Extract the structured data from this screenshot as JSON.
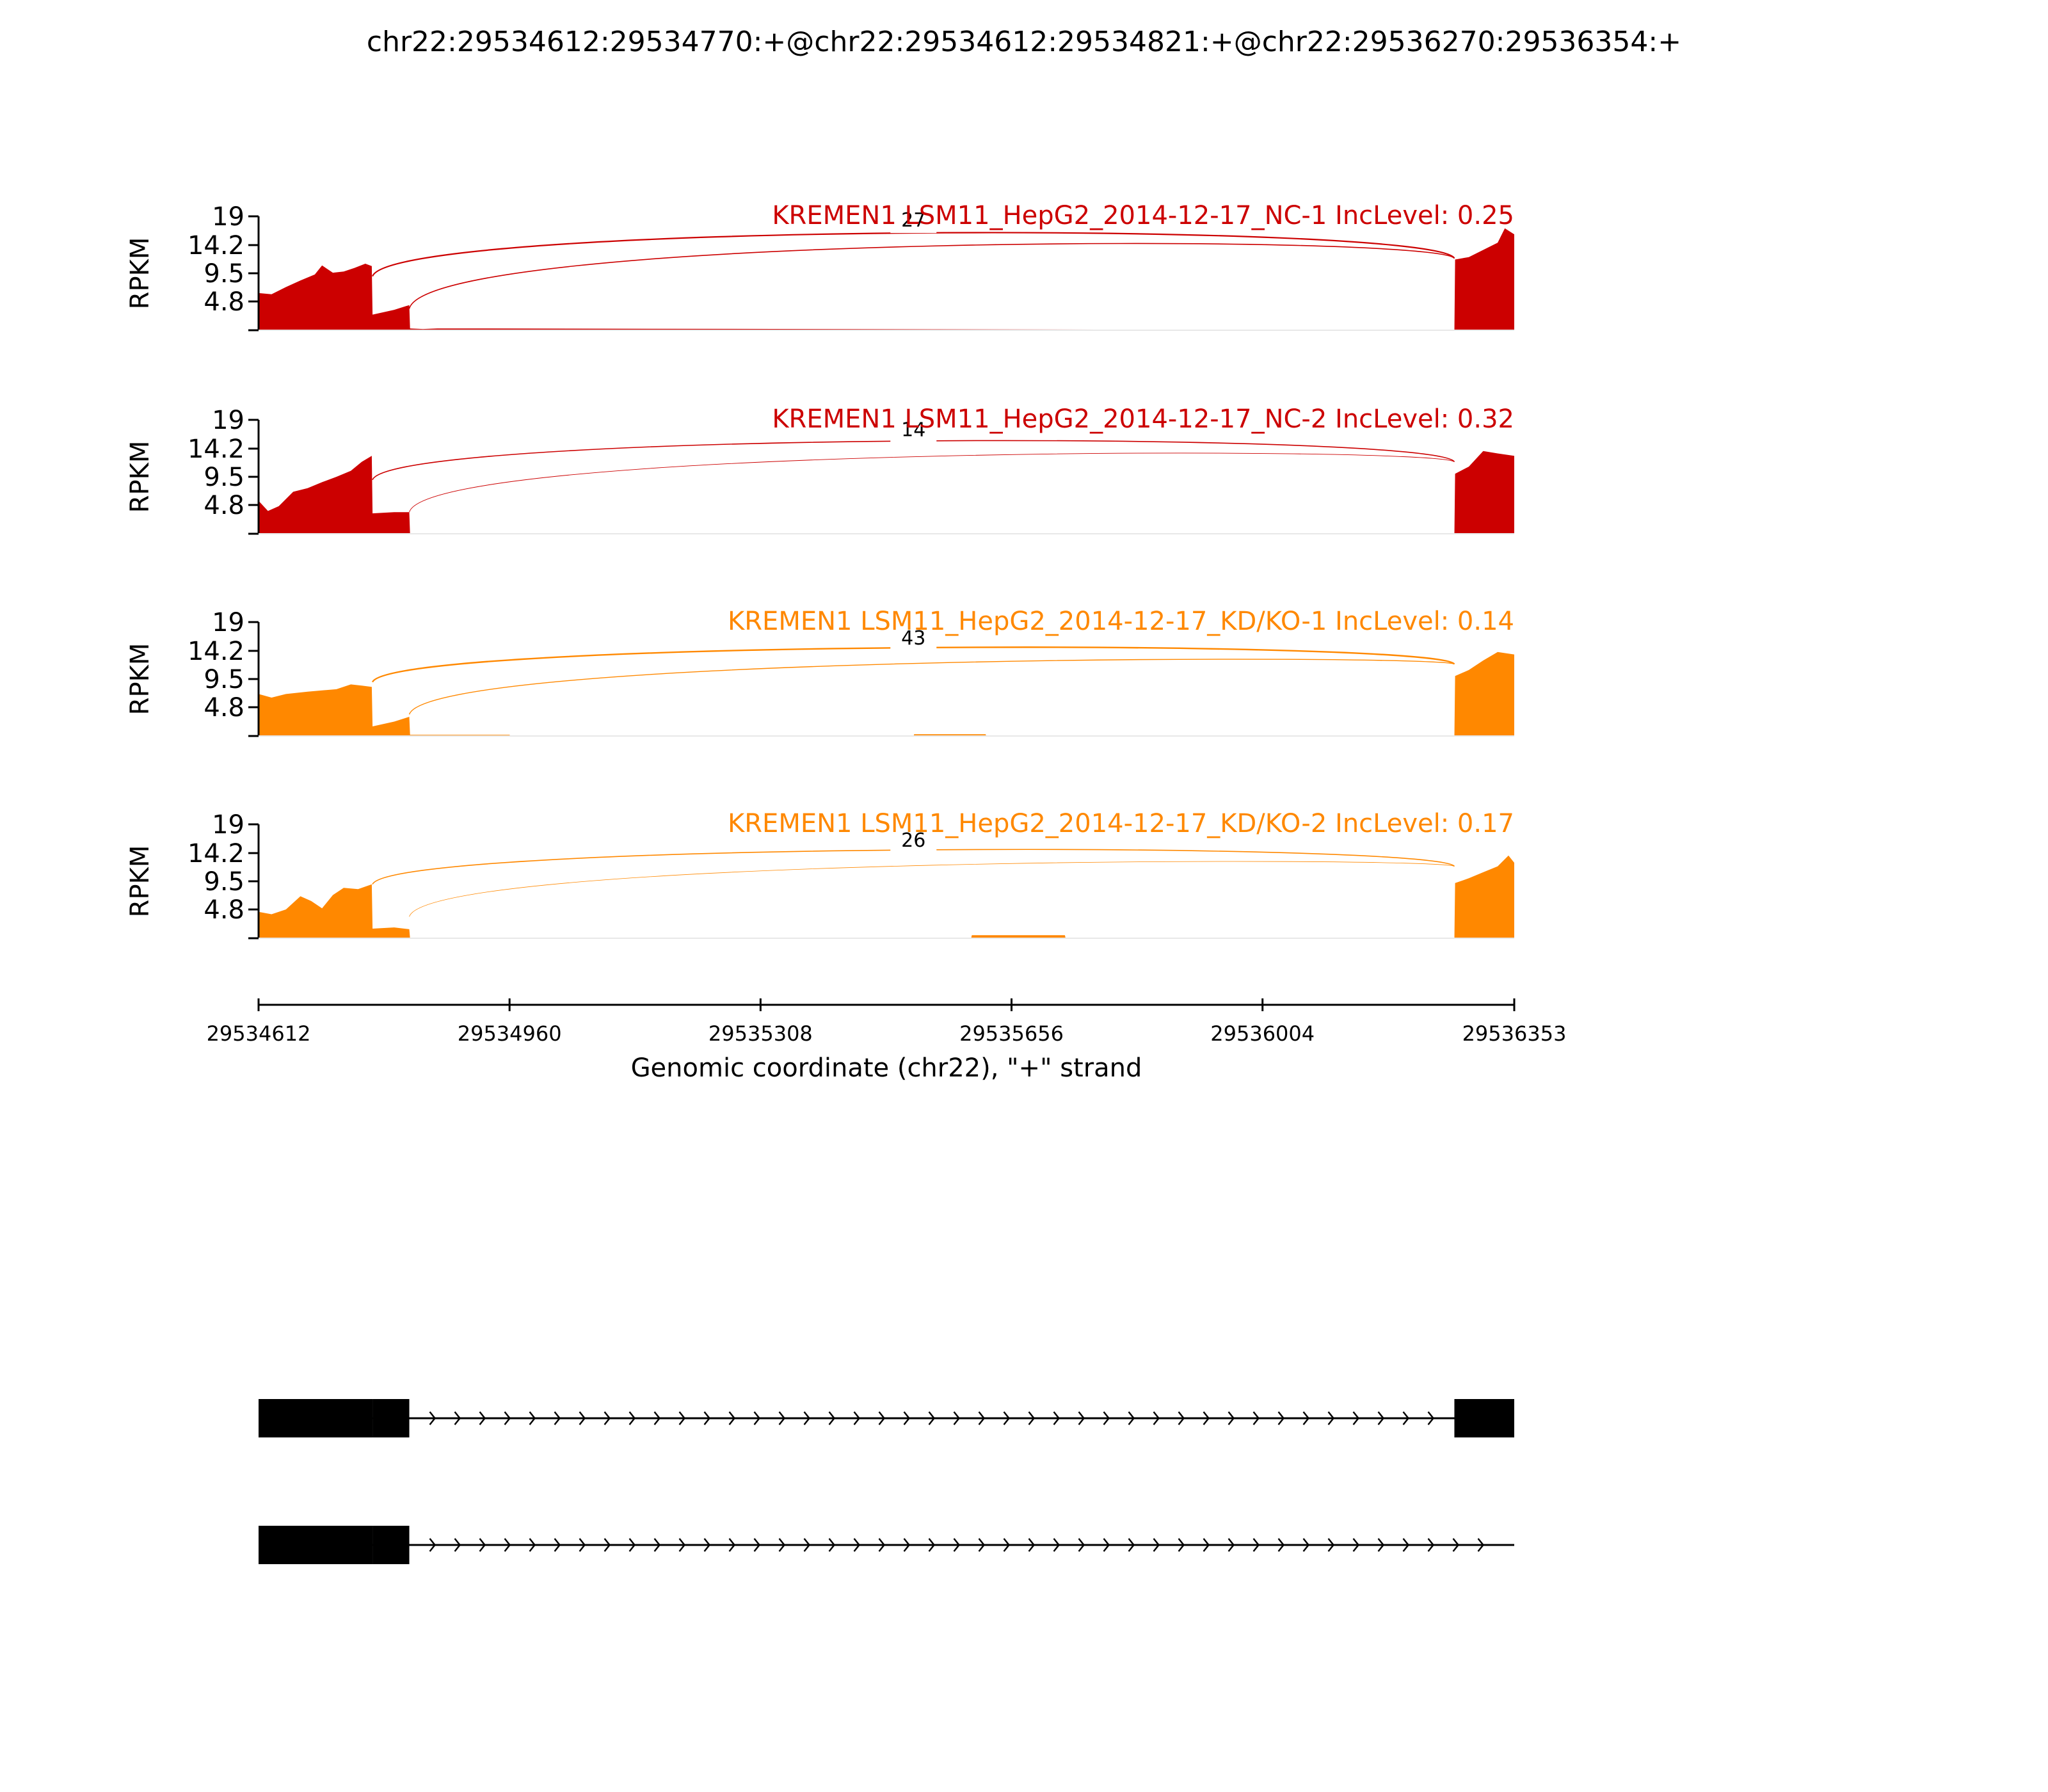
{
  "title": "chr22:29534612:29534770:+@chr22:29534612:29534821:+@chr22:29536270:29536354:+",
  "colors": {
    "nc": "#cc0000",
    "kd": "#ff8800",
    "axis": "#000000",
    "gene": "#000000"
  },
  "chart_data": {
    "type": "area",
    "title": "chr22:29534612:29534770:+@chr22:29534612:29534821:+@chr22:29536270:29536354:+",
    "xlabel": "Genomic coordinate (chr22), \"+\" strand",
    "ylabel": "RPKM",
    "xlim": [
      29534612,
      29536353
    ],
    "ylim": [
      0,
      19
    ],
    "xticks": [
      "29534612",
      "29534960",
      "29535308",
      "29535656",
      "29536004",
      "29536353"
    ],
    "xtick_values": [
      29534612,
      29534960,
      29535308,
      29535656,
      29536004,
      29536353
    ],
    "yticks": [
      "19",
      "14.2",
      "9.5",
      "4.8"
    ],
    "ytick_values": [
      19,
      14.2,
      9.5,
      4.8
    ],
    "tracks": [
      {
        "label": "KREMEN1 LSM11_HepG2_2014-12-17_NC-1 IncLevel: 0.25",
        "color": "nc",
        "coverage": [
          [
            29534612,
            6.2
          ],
          [
            29534630,
            6.0
          ],
          [
            29534650,
            7.2
          ],
          [
            29534670,
            8.3
          ],
          [
            29534690,
            9.3
          ],
          [
            29534700,
            10.8
          ],
          [
            29534715,
            9.6
          ],
          [
            29534730,
            9.8
          ],
          [
            29534745,
            10.4
          ],
          [
            29534760,
            11.1
          ],
          [
            29534769,
            10.7
          ],
          [
            29534770,
            2.6
          ],
          [
            29534800,
            3.4
          ],
          [
            29534821,
            4.2
          ],
          [
            29534822,
            0.3
          ],
          [
            29534840,
            0.2
          ],
          [
            29534860,
            0.3
          ],
          [
            29534920,
            0.3
          ],
          [
            29536270,
            0.0
          ],
          [
            29536271,
            11.8
          ],
          [
            29536290,
            12.2
          ],
          [
            29536310,
            13.4
          ],
          [
            29536330,
            14.6
          ],
          [
            29536340,
            17.0
          ],
          [
            29536353,
            16.0
          ]
        ],
        "junctions": [
          {
            "from": 29534770,
            "to": 29536270,
            "count": "27",
            "height": 16.0,
            "width": 2.2
          },
          {
            "from": 29534821,
            "to": 29536270,
            "count": "",
            "height": 14.0,
            "width": 1.6
          }
        ]
      },
      {
        "label": "KREMEN1 LSM11_HepG2_2014-12-17_NC-2 IncLevel: 0.32",
        "color": "nc",
        "coverage": [
          [
            29534612,
            5.5
          ],
          [
            29534625,
            3.8
          ],
          [
            29534640,
            4.6
          ],
          [
            29534660,
            7.0
          ],
          [
            29534680,
            7.6
          ],
          [
            29534700,
            8.6
          ],
          [
            29534720,
            9.5
          ],
          [
            29534740,
            10.5
          ],
          [
            29534755,
            12.0
          ],
          [
            29534769,
            13.0
          ],
          [
            29534770,
            3.4
          ],
          [
            29534800,
            3.6
          ],
          [
            29534821,
            3.6
          ],
          [
            29534822,
            0.0
          ],
          [
            29536270,
            0.0
          ],
          [
            29536271,
            10.0
          ],
          [
            29536290,
            11.2
          ],
          [
            29536310,
            13.8
          ],
          [
            29536330,
            13.4
          ],
          [
            29536353,
            13.0
          ]
        ],
        "junctions": [
          {
            "from": 29534770,
            "to": 29536270,
            "count": "14",
            "height": 15.0,
            "width": 1.6
          },
          {
            "from": 29534821,
            "to": 29536270,
            "count": "",
            "height": 12.5,
            "width": 0.9
          }
        ]
      },
      {
        "label": "KREMEN1 LSM11_HepG2_2014-12-17_KD/KO-1 IncLevel: 0.14",
        "color": "kd",
        "coverage": [
          [
            29534612,
            7.0
          ],
          [
            29534630,
            6.4
          ],
          [
            29534650,
            7.0
          ],
          [
            29534680,
            7.4
          ],
          [
            29534700,
            7.6
          ],
          [
            29534720,
            7.8
          ],
          [
            29534740,
            8.6
          ],
          [
            29534755,
            8.4
          ],
          [
            29534769,
            8.2
          ],
          [
            29534770,
            1.6
          ],
          [
            29534800,
            2.4
          ],
          [
            29534821,
            3.2
          ],
          [
            29534822,
            0.2
          ],
          [
            29534960,
            0.2
          ],
          [
            29534961,
            0.0
          ],
          [
            29535520,
            0.0
          ],
          [
            29535521,
            0.3
          ],
          [
            29535620,
            0.3
          ],
          [
            29535621,
            0.0
          ],
          [
            29536270,
            0.0
          ],
          [
            29536271,
            10.0
          ],
          [
            29536290,
            11.0
          ],
          [
            29536310,
            12.6
          ],
          [
            29536330,
            14.0
          ],
          [
            29536353,
            13.6
          ]
        ],
        "junctions": [
          {
            "from": 29534770,
            "to": 29536270,
            "count": "43",
            "height": 14.0,
            "width": 2.4
          },
          {
            "from": 29534821,
            "to": 29536270,
            "count": "",
            "height": 11.5,
            "width": 1.4
          }
        ]
      },
      {
        "label": "KREMEN1 LSM11_HepG2_2014-12-17_KD/KO-2 IncLevel: 0.17",
        "color": "kd",
        "coverage": [
          [
            29534612,
            4.4
          ],
          [
            29534630,
            4.0
          ],
          [
            29534650,
            4.8
          ],
          [
            29534670,
            7.0
          ],
          [
            29534685,
            6.2
          ],
          [
            29534700,
            5.0
          ],
          [
            29534715,
            7.2
          ],
          [
            29534730,
            8.4
          ],
          [
            29534750,
            8.2
          ],
          [
            29534769,
            9.0
          ],
          [
            29534770,
            1.6
          ],
          [
            29534800,
            1.8
          ],
          [
            29534821,
            1.5
          ],
          [
            29534822,
            0.0
          ],
          [
            29535600,
            0.0
          ],
          [
            29535601,
            0.5
          ],
          [
            29535730,
            0.5
          ],
          [
            29535731,
            0.0
          ],
          [
            29536270,
            0.0
          ],
          [
            29536271,
            9.2
          ],
          [
            29536290,
            10.0
          ],
          [
            29536310,
            11.0
          ],
          [
            29536330,
            12.0
          ],
          [
            29536345,
            13.8
          ],
          [
            29536353,
            12.6
          ]
        ],
        "junctions": [
          {
            "from": 29534770,
            "to": 29536270,
            "count": "26",
            "height": 14.0,
            "width": 1.6
          },
          {
            "from": 29534821,
            "to": 29536270,
            "count": "",
            "height": 11.5,
            "width": 0.8
          }
        ]
      }
    ],
    "isoforms": [
      {
        "exons": [
          [
            29534612,
            29534770
          ],
          [
            29534770,
            29534821
          ],
          [
            29536270,
            29536353
          ]
        ],
        "line": [
          29534612,
          29536353
        ]
      },
      {
        "exons": [
          [
            29534612,
            29534770
          ],
          [
            29534770,
            29534821
          ]
        ],
        "line": [
          29534612,
          29536353
        ]
      }
    ]
  }
}
